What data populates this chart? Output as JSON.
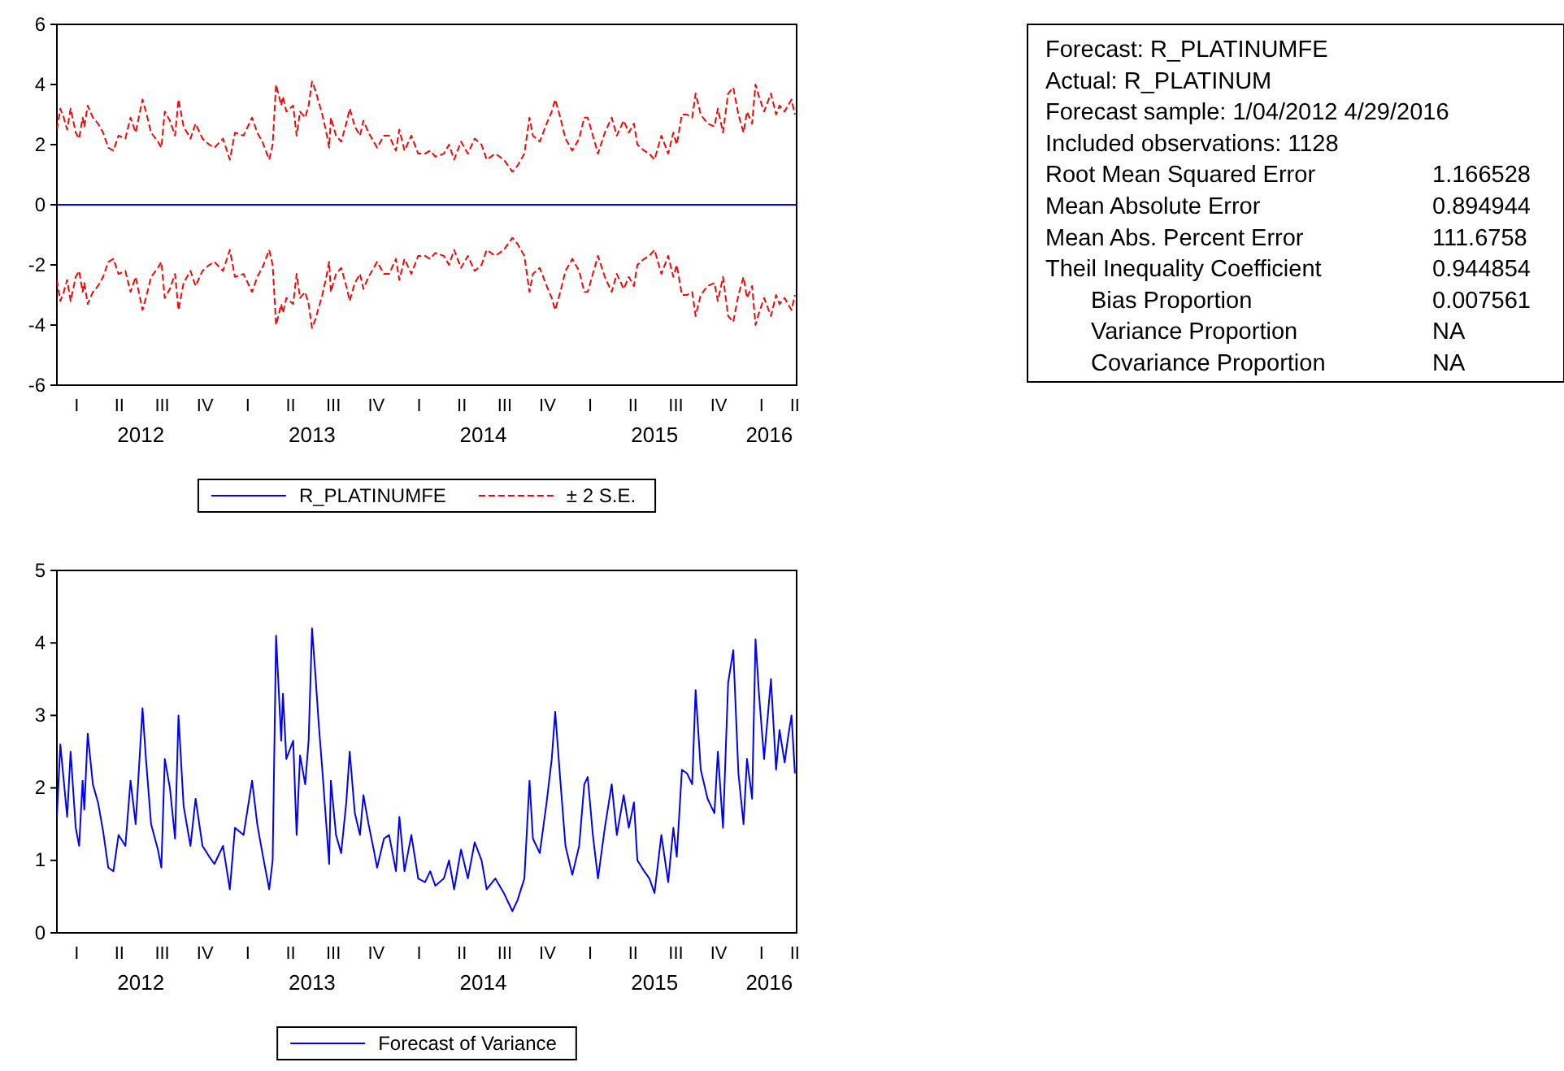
{
  "chart_data": [
    {
      "type": "line",
      "xlim": [
        2012.01,
        2016.33
      ],
      "ylim": [
        -6,
        6
      ],
      "yticks": [
        -6,
        -4,
        -2,
        0,
        2,
        4,
        6
      ],
      "annotations": [
        "I",
        "II",
        "III",
        "IV",
        "I",
        "II",
        "III",
        "IV",
        "I",
        "II",
        "III",
        "IV",
        "I",
        "II",
        "III",
        "IV",
        "I",
        "II"
      ],
      "xticks": [
        {
          "value": 2012.5,
          "label": "2012"
        },
        {
          "value": 2013.5,
          "label": "2013"
        },
        {
          "value": 2014.5,
          "label": "2014"
        },
        {
          "value": 2015.5,
          "label": "2015"
        },
        {
          "value": 2016.17,
          "label": "2016"
        }
      ],
      "legend": "bottom",
      "x": [
        2012.01,
        2012.03,
        2012.05,
        2012.07,
        2012.09,
        2012.12,
        2012.14,
        2012.16,
        2012.17,
        2012.19,
        2012.22,
        2012.25,
        2012.28,
        2012.31,
        2012.34,
        2012.37,
        2012.41,
        2012.44,
        2012.47,
        2012.51,
        2012.53,
        2012.56,
        2012.6,
        2012.62,
        2012.64,
        2012.67,
        2012.7,
        2012.72,
        2012.75,
        2012.79,
        2012.82,
        2012.86,
        2012.9,
        2012.93,
        2012.98,
        2013.02,
        2013.05,
        2013.1,
        2013.15,
        2013.18,
        2013.21,
        2013.25,
        2013.27,
        2013.29,
        2013.32,
        2013.33,
        2013.35,
        2013.39,
        2013.41,
        2013.43,
        2013.46,
        2013.48,
        2013.5,
        2013.52,
        2013.54,
        2013.56,
        2013.58,
        2013.6,
        2013.61,
        2013.64,
        2013.67,
        2013.7,
        2013.72,
        2013.75,
        2013.78,
        2013.8,
        2013.83,
        2013.86,
        2013.88,
        2013.92,
        2013.95,
        2013.99,
        2014.01,
        2014.04,
        2014.08,
        2014.12,
        2014.16,
        2014.19,
        2014.22,
        2014.27,
        2014.3,
        2014.33,
        2014.37,
        2014.41,
        2014.45,
        2014.49,
        2014.52,
        2014.57,
        2014.62,
        2014.67,
        2014.7,
        2014.74,
        2014.77,
        2014.79,
        2014.83,
        2014.87,
        2014.9,
        2014.92,
        2014.95,
        2014.98,
        2015.02,
        2015.06,
        2015.09,
        2015.11,
        2015.14,
        2015.17,
        2015.21,
        2015.25,
        2015.28,
        2015.32,
        2015.35,
        2015.38,
        2015.4,
        2015.44,
        2015.47,
        2015.5,
        2015.54,
        2015.58,
        2015.61,
        2015.63,
        2015.66,
        2015.69,
        2015.72,
        2015.74,
        2015.77,
        2015.81,
        2015.85,
        2015.87,
        2015.9,
        2015.93,
        2015.96,
        2015.99,
        2016.02,
        2016.04,
        2016.07,
        2016.09,
        2016.11,
        2016.14,
        2016.18,
        2016.21,
        2016.23,
        2016.26,
        2016.28,
        2016.3,
        2016.32
      ],
      "series": [
        {
          "name": "R_PLATINUMFE",
          "color": "#0000ff",
          "line_style": "solid",
          "x": [
            2012.01,
            2016.33
          ],
          "values": [
            0,
            0
          ]
        },
        {
          "name": "± 2 S.E.",
          "color": "#ff0000",
          "line_style": "dashed",
          "values": [
            2.5,
            3.2,
            2.9,
            2.5,
            3.2,
            2.4,
            2.2,
            2.9,
            2.6,
            3.3,
            2.9,
            2.7,
            2.4,
            1.9,
            1.8,
            2.3,
            2.2,
            2.9,
            2.4,
            3.5,
            3.1,
            2.4,
            2.1,
            1.9,
            3.1,
            2.8,
            2.3,
            3.5,
            2.6,
            2.2,
            2.7,
            2.2,
            2.0,
            1.9,
            2.2,
            1.5,
            2.4,
            2.3,
            2.9,
            2.4,
            2.1,
            1.5,
            2.0,
            4.0,
            3.3,
            3.6,
            3.1,
            3.3,
            2.3,
            3.1,
            2.9,
            3.3,
            4.1,
            3.8,
            3.4,
            3.0,
            2.5,
            1.9,
            2.9,
            2.3,
            2.1,
            2.7,
            3.2,
            2.6,
            2.3,
            2.8,
            2.4,
            2.1,
            1.9,
            2.3,
            2.3,
            1.8,
            2.5,
            1.8,
            2.3,
            1.7,
            1.7,
            1.8,
            1.6,
            1.7,
            2.0,
            1.5,
            2.1,
            1.7,
            2.2,
            2.0,
            1.5,
            1.7,
            1.5,
            1.1,
            1.3,
            1.7,
            2.9,
            2.3,
            2.1,
            2.7,
            3.1,
            3.5,
            2.9,
            2.2,
            1.8,
            2.2,
            2.9,
            2.9,
            2.3,
            1.7,
            2.4,
            2.9,
            2.3,
            2.8,
            2.4,
            2.7,
            2.0,
            1.8,
            1.7,
            1.5,
            2.3,
            1.7,
            2.4,
            2.0,
            3.0,
            3.0,
            2.9,
            3.7,
            3.0,
            2.7,
            2.6,
            3.2,
            2.4,
            3.7,
            3.9,
            3.0,
            2.4,
            3.1,
            2.7,
            4.0,
            3.6,
            3.1,
            3.7,
            3.0,
            3.3,
            3.1,
            3.3,
            3.5,
            3.0
          ]
        },
        {
          "color": "#ff0000",
          "line_style": "dashed",
          "values": [
            -2.5,
            -3.2,
            -2.9,
            -2.5,
            -3.2,
            -2.4,
            -2.2,
            -2.9,
            -2.6,
            -3.3,
            -2.9,
            -2.7,
            -2.4,
            -1.9,
            -1.8,
            -2.3,
            -2.2,
            -2.9,
            -2.4,
            -3.5,
            -3.1,
            -2.4,
            -2.1,
            -1.9,
            -3.1,
            -2.8,
            -2.3,
            -3.5,
            -2.6,
            -2.2,
            -2.7,
            -2.2,
            -2.0,
            -1.9,
            -2.2,
            -1.5,
            -2.4,
            -2.3,
            -2.9,
            -2.4,
            -2.1,
            -1.5,
            -2.0,
            -4.0,
            -3.3,
            -3.6,
            -3.1,
            -3.3,
            -2.3,
            -3.1,
            -2.9,
            -3.3,
            -4.1,
            -3.8,
            -3.4,
            -3.0,
            -2.5,
            -1.9,
            -2.9,
            -2.3,
            -2.1,
            -2.7,
            -3.2,
            -2.6,
            -2.3,
            -2.8,
            -2.4,
            -2.1,
            -1.9,
            -2.3,
            -2.3,
            -1.8,
            -2.5,
            -1.8,
            -2.3,
            -1.7,
            -1.7,
            -1.8,
            -1.6,
            -1.7,
            -2.0,
            -1.5,
            -2.1,
            -1.7,
            -2.2,
            -2.0,
            -1.5,
            -1.7,
            -1.5,
            -1.1,
            -1.3,
            -1.7,
            -2.9,
            -2.3,
            -2.1,
            -2.7,
            -3.1,
            -3.5,
            -2.9,
            -2.2,
            -1.8,
            -2.2,
            -2.9,
            -2.9,
            -2.3,
            -1.7,
            -2.4,
            -2.9,
            -2.3,
            -2.8,
            -2.4,
            -2.7,
            -2.0,
            -1.8,
            -1.7,
            -1.5,
            -2.3,
            -1.7,
            -2.4,
            -2.0,
            -3.0,
            -3.0,
            -2.9,
            -3.7,
            -3.0,
            -2.7,
            -2.6,
            -3.2,
            -2.4,
            -3.7,
            -3.9,
            -3.0,
            -2.4,
            -3.1,
            -2.7,
            -4.0,
            -3.6,
            -3.1,
            -3.7,
            -3.0,
            -3.3,
            -3.1,
            -3.3,
            -3.5,
            -3.0
          ]
        }
      ]
    },
    {
      "type": "other",
      "annotations": [
        "Forecast: R_PLATINUMFE",
        "Actual: R_PLATINUM",
        "Forecast sample: 1/04/2012 4/29/2016",
        "Included observations: 1128",
        "Root Mean Squared Error",
        "1.166528",
        "Mean Absolute Error",
        "0.894944",
        "Mean Abs. Percent Error",
        "111.6758",
        "Theil Inequality Coefficient",
        "0.944854",
        "Bias Proportion",
        "0.007561",
        "Variance Proportion",
        "NA",
        "Covariance Proportion",
        "NA"
      ]
    },
    {
      "type": "line",
      "xlim": [
        2012.01,
        2016.33
      ],
      "ylim": [
        0,
        5
      ],
      "yticks": [
        0,
        1,
        2,
        3,
        4,
        5
      ],
      "annotations": [
        "I",
        "II",
        "III",
        "IV",
        "I",
        "II",
        "III",
        "IV",
        "I",
        "II",
        "III",
        "IV",
        "I",
        "II",
        "III",
        "IV",
        "I",
        "II"
      ],
      "xticks": [
        {
          "value": 2012.5,
          "label": "2012"
        },
        {
          "value": 2013.5,
          "label": "2013"
        },
        {
          "value": 2014.5,
          "label": "2014"
        },
        {
          "value": 2015.5,
          "label": "2015"
        },
        {
          "value": 2016.17,
          "label": "2016"
        }
      ],
      "legend": "bottom",
      "x": [
        2012.01,
        2012.03,
        2012.05,
        2012.07,
        2012.09,
        2012.12,
        2012.14,
        2012.16,
        2012.17,
        2012.19,
        2012.22,
        2012.25,
        2012.28,
        2012.31,
        2012.34,
        2012.37,
        2012.41,
        2012.44,
        2012.47,
        2012.51,
        2012.53,
        2012.56,
        2012.6,
        2012.62,
        2012.64,
        2012.67,
        2012.7,
        2012.72,
        2012.75,
        2012.79,
        2012.82,
        2012.86,
        2012.9,
        2012.93,
        2012.98,
        2013.02,
        2013.05,
        2013.1,
        2013.15,
        2013.18,
        2013.21,
        2013.25,
        2013.27,
        2013.29,
        2013.32,
        2013.33,
        2013.35,
        2013.39,
        2013.41,
        2013.43,
        2013.46,
        2013.48,
        2013.5,
        2013.52,
        2013.54,
        2013.56,
        2013.58,
        2013.6,
        2013.61,
        2013.64,
        2013.67,
        2013.7,
        2013.72,
        2013.75,
        2013.78,
        2013.8,
        2013.83,
        2013.86,
        2013.88,
        2013.92,
        2013.95,
        2013.99,
        2014.01,
        2014.04,
        2014.08,
        2014.12,
        2014.16,
        2014.19,
        2014.22,
        2014.27,
        2014.3,
        2014.33,
        2014.37,
        2014.41,
        2014.45,
        2014.49,
        2014.52,
        2014.57,
        2014.62,
        2014.67,
        2014.7,
        2014.74,
        2014.77,
        2014.79,
        2014.83,
        2014.87,
        2014.9,
        2014.92,
        2014.95,
        2014.98,
        2015.02,
        2015.06,
        2015.09,
        2015.11,
        2015.14,
        2015.17,
        2015.21,
        2015.25,
        2015.28,
        2015.32,
        2015.35,
        2015.38,
        2015.4,
        2015.44,
        2015.47,
        2015.5,
        2015.54,
        2015.58,
        2015.61,
        2015.63,
        2015.66,
        2015.69,
        2015.72,
        2015.74,
        2015.77,
        2015.81,
        2015.85,
        2015.87,
        2015.9,
        2015.93,
        2015.96,
        2015.99,
        2016.02,
        2016.04,
        2016.07,
        2016.09,
        2016.11,
        2016.14,
        2016.18,
        2016.21,
        2016.23,
        2016.26,
        2016.28,
        2016.3,
        2016.32
      ],
      "series": [
        {
          "name": "Forecast of Variance",
          "color": "#0000ff",
          "line_style": "solid",
          "values": [
            1.6,
            2.6,
            2.1,
            1.6,
            2.5,
            1.45,
            1.2,
            2.1,
            1.7,
            2.75,
            2.05,
            1.8,
            1.4,
            0.9,
            0.85,
            1.35,
            1.2,
            2.1,
            1.5,
            3.1,
            2.4,
            1.5,
            1.15,
            0.9,
            2.4,
            2.0,
            1.3,
            3.0,
            1.75,
            1.2,
            1.85,
            1.2,
            1.05,
            0.95,
            1.2,
            0.6,
            1.45,
            1.35,
            2.1,
            1.5,
            1.1,
            0.6,
            1.0,
            4.1,
            2.65,
            3.3,
            2.4,
            2.65,
            1.35,
            2.45,
            2.05,
            2.65,
            4.2,
            3.55,
            2.85,
            2.25,
            1.6,
            0.95,
            2.1,
            1.35,
            1.1,
            1.8,
            2.5,
            1.65,
            1.35,
            1.9,
            1.5,
            1.15,
            0.9,
            1.3,
            1.35,
            0.85,
            1.6,
            0.85,
            1.35,
            0.75,
            0.7,
            0.85,
            0.65,
            0.75,
            1.0,
            0.6,
            1.15,
            0.75,
            1.25,
            1.0,
            0.6,
            0.75,
            0.55,
            0.3,
            0.45,
            0.75,
            2.1,
            1.3,
            1.1,
            1.8,
            2.4,
            3.05,
            2.1,
            1.2,
            0.8,
            1.2,
            2.05,
            2.15,
            1.35,
            0.75,
            1.45,
            2.05,
            1.35,
            1.9,
            1.45,
            1.8,
            1.0,
            0.85,
            0.75,
            0.55,
            1.35,
            0.7,
            1.45,
            1.05,
            2.25,
            2.2,
            2.05,
            3.35,
            2.25,
            1.85,
            1.65,
            2.5,
            1.45,
            3.45,
            3.9,
            2.2,
            1.5,
            2.4,
            1.85,
            4.05,
            3.3,
            2.4,
            3.5,
            2.25,
            2.8,
            2.35,
            2.7,
            3.0,
            2.2
          ]
        }
      ]
    }
  ]
}
